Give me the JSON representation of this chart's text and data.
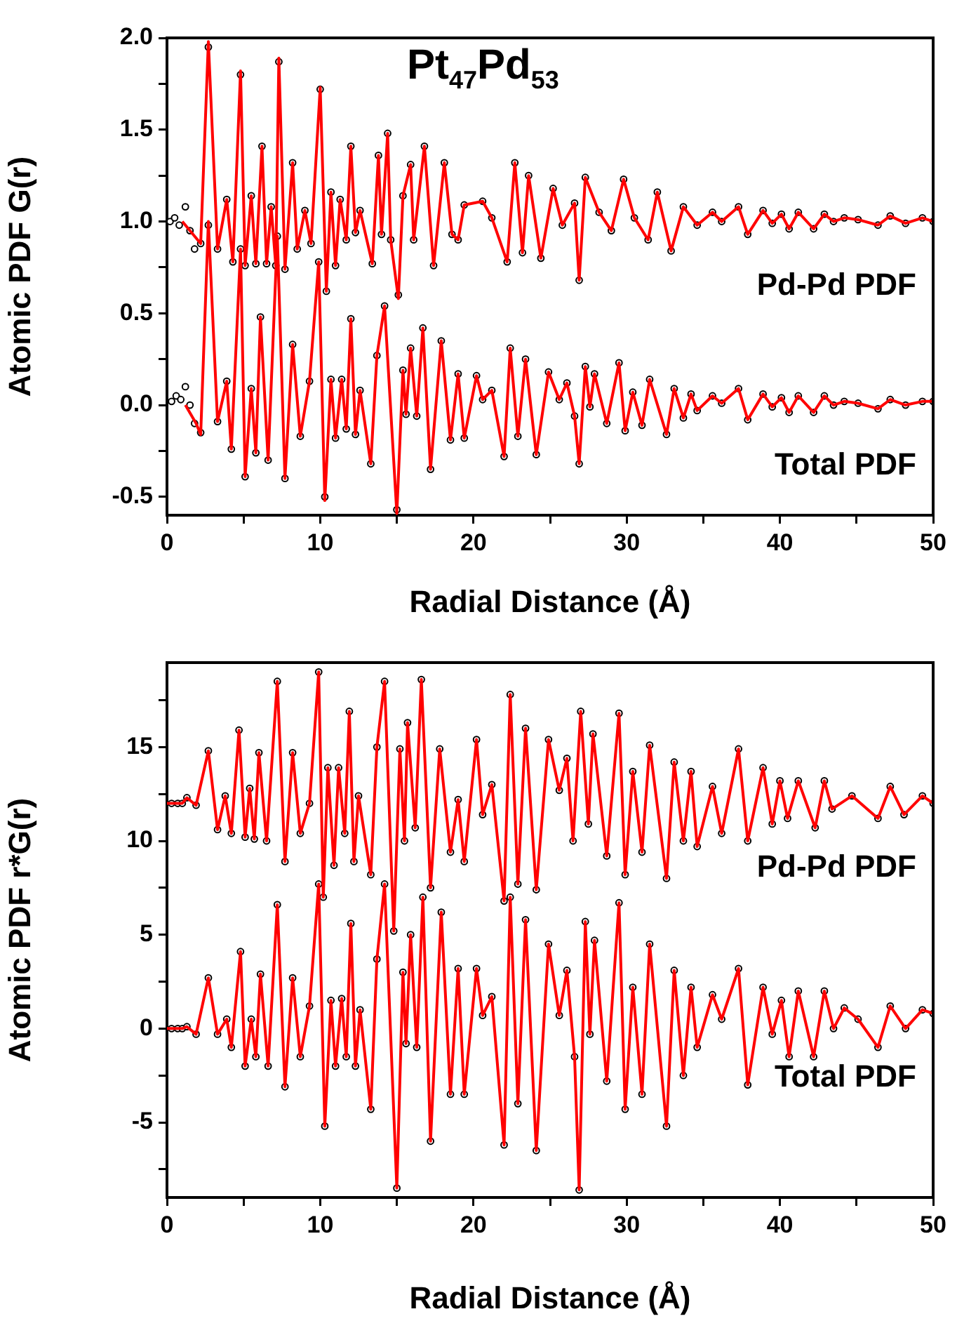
{
  "chart_data": [
    {
      "type": "line",
      "title": "Pt$_{47}$Pd$_{53}$",
      "xlabel": "Radial Distance (Å)",
      "ylabel": "Atomic PDF G(r)",
      "xlim": [
        0,
        50
      ],
      "ylim": [
        -0.6,
        2.0
      ],
      "xticks": [
        0,
        {
          "value": 5,
          "label": null
        },
        10,
        {
          "value": 15,
          "label": null
        },
        20,
        {
          "value": 25,
          "label": null
        },
        30,
        {
          "value": 35,
          "label": null
        },
        40,
        {
          "value": 45,
          "label": null
        },
        50
      ],
      "yticks": [
        -0.5,
        {
          "value": -0.25,
          "label": null
        },
        {
          "value": 0,
          "label": "0.0"
        },
        {
          "value": 0.25,
          "label": null
        },
        0.5,
        {
          "value": 0.75,
          "label": null
        },
        {
          "value": 1,
          "label": "1.0"
        },
        {
          "value": 1.25,
          "label": null
        },
        1.5,
        {
          "value": 1.75,
          "label": null
        },
        {
          "value": 2,
          "label": "2.0"
        }
      ],
      "series": [
        {
          "type": "scatter",
          "marker": "circle",
          "color": "#000000",
          "x": [
            0.2,
            0.5,
            0.8,
            1.2,
            1.5,
            1.8,
            2.2,
            2.7,
            3.3,
            3.9,
            4.3,
            4.8,
            5.1,
            5.5,
            5.8,
            6.2,
            6.5,
            6.8,
            7.1,
            7.3,
            7.7,
            8.2,
            8.5,
            9.0,
            9.4,
            10.0,
            10.4,
            10.7,
            11.0,
            11.3,
            11.7,
            12.0,
            12.3,
            12.6,
            13.4,
            13.8,
            14.0,
            14.4,
            14.6,
            15.1,
            15.4,
            15.9,
            16.1,
            16.8,
            17.4,
            18.1,
            18.6,
            19.0,
            19.4,
            20.6,
            21.2,
            22.2,
            22.7,
            23.2,
            23.6,
            24.4,
            25.2,
            25.8,
            26.6,
            26.9,
            27.3,
            28.2,
            29.0,
            29.8,
            30.5,
            31.4,
            32.0,
            32.9,
            33.7,
            34.6,
            35.6,
            36.2,
            37.3,
            37.9,
            38.9,
            39.5,
            40.1,
            40.6,
            41.2,
            42.2,
            42.9,
            43.5,
            44.2,
            45.1,
            46.4,
            47.2,
            48.2,
            49.3,
            50.0
          ],
          "values": [
            1.0,
            1.02,
            0.98,
            1.08,
            0.95,
            0.85,
            0.88,
            1.95,
            0.85,
            1.12,
            0.78,
            1.8,
            0.76,
            1.14,
            0.77,
            1.41,
            0.77,
            1.08,
            0.76,
            1.87,
            0.74,
            1.32,
            0.85,
            1.06,
            0.88,
            1.72,
            0.62,
            1.16,
            0.76,
            1.12,
            0.9,
            1.41,
            0.94,
            1.06,
            0.77,
            1.36,
            0.93,
            1.48,
            0.9,
            0.6,
            1.14,
            1.31,
            0.9,
            1.41,
            0.76,
            1.32,
            0.93,
            0.9,
            1.09,
            1.11,
            1.02,
            0.78,
            1.32,
            0.83,
            1.25,
            0.8,
            1.18,
            0.98,
            1.1,
            0.68,
            1.24,
            1.05,
            0.95,
            1.23,
            1.02,
            0.9,
            1.16,
            0.84,
            1.08,
            0.98,
            1.05,
            1.0,
            1.08,
            0.93,
            1.06,
            0.99,
            1.04,
            0.96,
            1.05,
            0.96,
            1.04,
            1.0,
            1.02,
            1.01,
            0.98,
            1.03,
            0.99,
            1.02,
            1.0
          ]
        },
        {
          "type": "scatter",
          "marker": "circle",
          "color": "#000000",
          "x": [
            0.3,
            0.6,
            0.9,
            1.2,
            1.5,
            1.8,
            2.2,
            2.7,
            3.3,
            3.9,
            4.2,
            4.8,
            5.1,
            5.5,
            5.8,
            6.1,
            6.6,
            7.2,
            7.7,
            8.2,
            8.7,
            9.3,
            9.9,
            10.3,
            10.7,
            11.0,
            11.4,
            11.7,
            12.0,
            12.3,
            12.6,
            13.3,
            13.7,
            14.2,
            15.0,
            15.4,
            15.6,
            15.9,
            16.3,
            16.7,
            17.2,
            17.9,
            18.5,
            19.0,
            19.4,
            20.2,
            20.6,
            21.2,
            22.0,
            22.4,
            22.9,
            23.4,
            24.1,
            24.9,
            25.6,
            26.1,
            26.6,
            26.9,
            27.3,
            27.6,
            27.9,
            28.7,
            29.5,
            29.9,
            30.4,
            31.0,
            31.5,
            32.6,
            33.1,
            33.7,
            34.2,
            34.6,
            35.6,
            36.2,
            37.3,
            37.9,
            38.9,
            39.5,
            40.1,
            40.6,
            41.2,
            42.2,
            42.9,
            43.5,
            44.2,
            45.1,
            46.4,
            47.2,
            48.2,
            49.3,
            50.0
          ],
          "values": [
            0.02,
            0.05,
            0.03,
            0.1,
            0.0,
            -0.1,
            -0.15,
            0.98,
            -0.09,
            0.13,
            -0.24,
            0.85,
            -0.39,
            0.09,
            -0.26,
            0.48,
            -0.3,
            0.92,
            -0.4,
            0.33,
            -0.17,
            0.13,
            0.78,
            -0.5,
            0.14,
            -0.18,
            0.14,
            -0.13,
            0.47,
            -0.16,
            0.08,
            -0.32,
            0.27,
            0.54,
            -0.57,
            0.19,
            -0.05,
            0.31,
            -0.06,
            0.42,
            -0.35,
            0.35,
            -0.19,
            0.17,
            -0.18,
            0.16,
            0.03,
            0.08,
            -0.28,
            0.31,
            -0.17,
            0.25,
            -0.27,
            0.18,
            0.03,
            0.12,
            -0.06,
            -0.32,
            0.21,
            -0.01,
            0.17,
            -0.1,
            0.23,
            -0.14,
            0.07,
            -0.11,
            0.14,
            -0.16,
            0.09,
            -0.07,
            0.06,
            -0.03,
            0.05,
            0.01,
            0.09,
            -0.08,
            0.06,
            -0.01,
            0.04,
            -0.04,
            0.05,
            -0.04,
            0.05,
            0.0,
            0.02,
            0.01,
            -0.02,
            0.03,
            0.0,
            0.02,
            0.02
          ]
        },
        {
          "type": "line",
          "name": "Pd-Pd PDF",
          "color": "#ff0000",
          "x": [
            1.0,
            2.2,
            2.7,
            3.3,
            3.9,
            4.3,
            4.8,
            5.1,
            5.5,
            5.8,
            6.2,
            6.5,
            6.8,
            7.1,
            7.3,
            7.7,
            8.2,
            8.5,
            9.0,
            9.4,
            10.0,
            10.4,
            10.7,
            11.0,
            11.3,
            11.7,
            12.0,
            12.3,
            12.6,
            13.4,
            13.8,
            14.0,
            14.4,
            14.6,
            15.1,
            15.4,
            15.9,
            16.1,
            16.8,
            17.4,
            18.1,
            18.6,
            19.0,
            19.4,
            20.6,
            21.2,
            22.2,
            22.7,
            23.2,
            23.6,
            24.4,
            25.2,
            25.8,
            26.6,
            26.9,
            27.3,
            28.2,
            29.0,
            29.8,
            30.5,
            31.4,
            32.0,
            32.9,
            33.7,
            34.6,
            35.6,
            36.2,
            37.3,
            37.9,
            38.9,
            39.5,
            40.1,
            40.6,
            41.2,
            42.2,
            42.9,
            43.5,
            44.2,
            45.1,
            46.4,
            47.2,
            48.2,
            49.3,
            50.0
          ],
          "values": [
            1.0,
            0.88,
            1.98,
            0.85,
            1.12,
            0.78,
            1.82,
            0.76,
            1.14,
            0.77,
            1.41,
            0.77,
            1.08,
            0.76,
            1.89,
            0.74,
            1.32,
            0.85,
            1.06,
            0.88,
            1.73,
            0.62,
            1.16,
            0.76,
            1.12,
            0.9,
            1.41,
            0.94,
            1.06,
            0.77,
            1.36,
            0.93,
            1.48,
            0.9,
            0.58,
            1.14,
            1.31,
            0.9,
            1.41,
            0.76,
            1.32,
            0.93,
            0.9,
            1.09,
            1.11,
            1.02,
            0.78,
            1.32,
            0.83,
            1.25,
            0.8,
            1.18,
            0.98,
            1.1,
            0.68,
            1.24,
            1.05,
            0.95,
            1.23,
            1.02,
            0.9,
            1.16,
            0.84,
            1.08,
            0.98,
            1.05,
            1.0,
            1.08,
            0.93,
            1.06,
            0.99,
            1.04,
            0.96,
            1.05,
            0.96,
            1.04,
            1.0,
            1.02,
            1.01,
            0.98,
            1.03,
            0.99,
            1.02,
            1.0
          ]
        },
        {
          "type": "line",
          "name": "Total PDF",
          "color": "#ff0000",
          "x": [
            1.2,
            1.9,
            2.2,
            2.7,
            3.3,
            3.9,
            4.2,
            4.8,
            5.1,
            5.5,
            5.8,
            6.1,
            6.6,
            7.2,
            7.7,
            8.2,
            8.7,
            9.3,
            9.9,
            10.3,
            10.7,
            11.0,
            11.4,
            11.7,
            12.0,
            12.3,
            12.6,
            13.3,
            13.7,
            14.2,
            15.0,
            15.4,
            15.6,
            15.9,
            16.3,
            16.7,
            17.2,
            17.9,
            18.5,
            19.0,
            19.4,
            20.2,
            20.6,
            21.2,
            22.0,
            22.4,
            22.9,
            23.4,
            24.1,
            24.9,
            25.6,
            26.1,
            26.6,
            26.9,
            27.3,
            27.6,
            27.9,
            28.7,
            29.5,
            29.9,
            30.4,
            31.0,
            31.5,
            32.6,
            33.1,
            33.7,
            34.2,
            34.6,
            35.6,
            36.2,
            37.3,
            37.9,
            38.9,
            39.5,
            40.1,
            40.6,
            41.2,
            42.2,
            42.9,
            43.5,
            44.2,
            45.1,
            46.4,
            47.2,
            48.2,
            49.3,
            50.0
          ],
          "values": [
            0.0,
            -0.1,
            -0.16,
            1.0,
            -0.09,
            0.13,
            -0.24,
            0.85,
            -0.39,
            0.09,
            -0.26,
            0.48,
            -0.3,
            0.92,
            -0.4,
            0.33,
            -0.17,
            0.13,
            0.78,
            -0.52,
            0.14,
            -0.18,
            0.14,
            -0.13,
            0.47,
            -0.16,
            0.08,
            -0.32,
            0.27,
            0.54,
            -0.59,
            0.19,
            -0.05,
            0.31,
            -0.06,
            0.42,
            -0.35,
            0.35,
            -0.19,
            0.17,
            -0.18,
            0.16,
            0.03,
            0.08,
            -0.28,
            0.31,
            -0.17,
            0.25,
            -0.27,
            0.18,
            0.03,
            0.12,
            -0.06,
            -0.32,
            0.21,
            -0.01,
            0.17,
            -0.1,
            0.23,
            -0.14,
            0.07,
            -0.11,
            0.14,
            -0.16,
            0.09,
            -0.07,
            0.06,
            -0.03,
            0.05,
            0.01,
            0.09,
            -0.08,
            0.06,
            -0.01,
            0.04,
            -0.04,
            0.05,
            -0.04,
            0.05,
            0.0,
            0.02,
            0.01,
            -0.02,
            0.03,
            0.0,
            0.02,
            0.02
          ]
        }
      ]
    },
    {
      "type": "line",
      "xlabel": "Radial Distance (Å)",
      "ylabel": "Atomic PDF r*G(r)",
      "xlim": [
        0,
        50
      ],
      "ylim": [
        -9,
        19.5
      ],
      "xticks": [
        0,
        {
          "value": 5,
          "label": null
        },
        10,
        {
          "value": 15,
          "label": null
        },
        20,
        {
          "value": 25,
          "label": null
        },
        30,
        {
          "value": 35,
          "label": null
        },
        40,
        {
          "value": 45,
          "label": null
        },
        50
      ],
      "yticks": [
        {
          "value": -7.5,
          "label": null
        },
        -5,
        {
          "value": -2.5,
          "label": null
        },
        0,
        {
          "value": 2.5,
          "label": null
        },
        5,
        {
          "value": 7.5,
          "label": null
        },
        10,
        {
          "value": 12.5,
          "label": null
        },
        15,
        {
          "value": 17.5,
          "label": null
        }
      ],
      "series": [
        {
          "type": "scatter",
          "marker": "circle",
          "color": "#000000",
          "x": [
            0.3,
            0.7,
            1.0,
            1.3,
            1.9,
            2.7,
            3.3,
            3.8,
            4.2,
            4.7,
            5.1,
            5.4,
            5.7,
            6.0,
            6.5,
            7.2,
            7.7,
            8.2,
            8.7,
            9.3,
            9.9,
            10.2,
            10.5,
            10.9,
            11.2,
            11.6,
            11.9,
            12.2,
            12.5,
            13.3,
            13.7,
            14.2,
            14.8,
            15.2,
            15.5,
            15.7,
            16.2,
            16.6,
            17.2,
            17.8,
            18.5,
            19.0,
            19.4,
            20.2,
            20.6,
            21.2,
            22.0,
            22.4,
            22.9,
            23.4,
            24.1,
            24.9,
            25.6,
            26.1,
            26.5,
            27.0,
            27.5,
            27.8,
            28.7,
            29.5,
            29.9,
            30.4,
            31.0,
            31.5,
            32.6,
            33.1,
            33.7,
            34.2,
            34.6,
            35.6,
            36.2,
            37.3,
            37.9,
            38.9,
            39.5,
            40.0,
            40.5,
            41.2,
            42.3,
            42.9,
            43.4,
            44.7,
            46.4,
            47.2,
            48.1,
            49.3,
            50.0
          ],
          "values": [
            12.0,
            12.0,
            12.0,
            12.3,
            11.9,
            14.8,
            10.6,
            12.4,
            10.4,
            15.9,
            10.2,
            12.8,
            10.1,
            14.7,
            10.0,
            18.5,
            8.9,
            14.7,
            10.4,
            12.0,
            19.0,
            7.0,
            13.9,
            8.7,
            13.9,
            10.4,
            16.9,
            8.9,
            12.4,
            8.2,
            15.0,
            18.5,
            5.2,
            14.9,
            10.0,
            16.3,
            10.7,
            18.6,
            7.5,
            14.9,
            9.4,
            12.2,
            8.9,
            15.4,
            11.4,
            13.0,
            6.8,
            17.8,
            7.7,
            16.0,
            7.4,
            15.4,
            12.7,
            14.4,
            10.0,
            16.9,
            10.9,
            15.7,
            9.2,
            16.8,
            8.2,
            13.7,
            9.4,
            15.1,
            8.0,
            14.2,
            10.0,
            13.7,
            9.7,
            12.9,
            10.4,
            14.9,
            10.0,
            13.9,
            10.9,
            13.2,
            11.2,
            13.2,
            10.7,
            13.2,
            11.7,
            12.4,
            11.2,
            12.9,
            11.4,
            12.4,
            12.0
          ]
        },
        {
          "type": "scatter",
          "marker": "circle",
          "color": "#000000",
          "x": [
            0.3,
            0.7,
            1.0,
            1.3,
            1.9,
            2.7,
            3.3,
            3.9,
            4.2,
            4.8,
            5.1,
            5.5,
            5.8,
            6.1,
            6.6,
            7.2,
            7.7,
            8.2,
            8.7,
            9.3,
            9.9,
            10.3,
            10.7,
            11.0,
            11.4,
            11.7,
            12.0,
            12.3,
            12.6,
            13.3,
            13.7,
            14.2,
            15.0,
            15.4,
            15.6,
            15.9,
            16.3,
            16.7,
            17.2,
            17.9,
            18.5,
            19.0,
            19.4,
            20.2,
            20.6,
            21.2,
            22.0,
            22.4,
            22.9,
            23.4,
            24.1,
            24.9,
            25.6,
            26.1,
            26.6,
            26.9,
            27.3,
            27.6,
            27.9,
            28.7,
            29.5,
            29.9,
            30.4,
            31.0,
            31.5,
            32.6,
            33.1,
            33.7,
            34.2,
            34.6,
            35.6,
            36.2,
            37.3,
            37.9,
            38.9,
            39.5,
            40.1,
            40.6,
            41.2,
            42.2,
            42.9,
            43.5,
            44.2,
            45.1,
            46.4,
            47.2,
            48.2,
            49.3,
            50.0
          ],
          "values": [
            0.0,
            0.0,
            0.0,
            0.1,
            -0.3,
            2.7,
            -0.3,
            0.5,
            -1.0,
            4.1,
            -2.0,
            0.5,
            -1.5,
            2.9,
            -2.0,
            6.6,
            -3.1,
            2.7,
            -1.5,
            1.2,
            7.7,
            -5.2,
            1.5,
            -2.0,
            1.6,
            -1.5,
            5.6,
            -2.0,
            1.0,
            -4.3,
            3.7,
            7.7,
            -8.5,
            3.0,
            -0.8,
            5.0,
            -1.0,
            7.0,
            -6.0,
            6.2,
            -3.5,
            3.2,
            -3.5,
            3.2,
            0.7,
            1.7,
            -6.2,
            7.0,
            -4.0,
            5.8,
            -6.5,
            4.5,
            0.7,
            3.1,
            -1.5,
            -8.6,
            5.7,
            -0.3,
            4.7,
            -2.8,
            6.7,
            -4.3,
            2.2,
            -3.5,
            4.5,
            -5.2,
            3.1,
            -2.5,
            2.2,
            -1.0,
            1.8,
            0.5,
            3.2,
            -3.0,
            2.2,
            -0.3,
            1.5,
            -1.5,
            2.0,
            -1.5,
            2.0,
            0.0,
            1.1,
            0.5,
            -1.0,
            1.2,
            0.0,
            1.0,
            0.8
          ]
        },
        {
          "type": "line",
          "name": "Pd-Pd PDF",
          "color": "#ff0000",
          "x": [
            0.0,
            1.0,
            1.3,
            1.9,
            2.7,
            3.3,
            3.8,
            4.2,
            4.7,
            5.1,
            5.4,
            5.7,
            6.0,
            6.5,
            7.2,
            7.7,
            8.2,
            8.7,
            9.3,
            9.9,
            10.2,
            10.5,
            10.9,
            11.2,
            11.6,
            11.9,
            12.2,
            12.5,
            13.3,
            13.7,
            14.2,
            14.8,
            15.2,
            15.5,
            15.7,
            16.2,
            16.6,
            17.2,
            17.8,
            18.5,
            19.0,
            19.4,
            20.2,
            20.6,
            21.2,
            22.0,
            22.4,
            22.9,
            23.4,
            24.1,
            24.9,
            25.6,
            26.1,
            26.5,
            27.0,
            27.5,
            27.8,
            28.7,
            29.5,
            29.9,
            30.4,
            31.0,
            31.5,
            32.6,
            33.1,
            33.7,
            34.2,
            34.6,
            35.6,
            36.2,
            37.3,
            37.9,
            38.9,
            39.5,
            40.0,
            40.5,
            41.2,
            42.3,
            42.9,
            43.4,
            44.7,
            46.4,
            47.2,
            48.1,
            49.3,
            50.0
          ],
          "values": [
            12.0,
            12.0,
            12.3,
            11.9,
            14.8,
            10.6,
            12.4,
            10.4,
            15.9,
            10.2,
            12.8,
            10.1,
            14.7,
            10.0,
            18.5,
            8.9,
            14.7,
            10.4,
            12.0,
            19.0,
            7.0,
            13.9,
            8.7,
            13.9,
            10.4,
            16.9,
            8.9,
            12.4,
            8.2,
            15.0,
            18.5,
            5.2,
            14.9,
            10.0,
            16.3,
            10.7,
            18.6,
            7.5,
            14.9,
            9.4,
            12.2,
            8.9,
            15.4,
            11.4,
            13.0,
            6.8,
            17.8,
            7.7,
            16.0,
            7.4,
            15.4,
            12.7,
            14.4,
            10.0,
            16.9,
            10.9,
            15.7,
            9.2,
            16.8,
            8.2,
            13.7,
            9.4,
            15.1,
            8.0,
            14.2,
            10.0,
            13.7,
            9.7,
            12.9,
            10.4,
            14.9,
            10.0,
            13.9,
            10.9,
            13.2,
            11.2,
            13.2,
            10.7,
            13.2,
            11.7,
            12.4,
            11.2,
            12.9,
            11.4,
            12.4,
            12.0
          ]
        },
        {
          "type": "line",
          "name": "Total PDF",
          "color": "#ff0000",
          "x": [
            0.0,
            1.0,
            1.3,
            1.9,
            2.7,
            3.3,
            3.9,
            4.2,
            4.8,
            5.1,
            5.5,
            5.8,
            6.1,
            6.6,
            7.2,
            7.7,
            8.2,
            8.7,
            9.3,
            9.9,
            10.3,
            10.7,
            11.0,
            11.4,
            11.7,
            12.0,
            12.3,
            12.6,
            13.3,
            13.7,
            14.2,
            15.0,
            15.4,
            15.6,
            15.9,
            16.3,
            16.7,
            17.2,
            17.9,
            18.5,
            19.0,
            19.4,
            20.2,
            20.6,
            21.2,
            22.0,
            22.4,
            22.9,
            23.4,
            24.1,
            24.9,
            25.6,
            26.1,
            26.6,
            26.9,
            27.3,
            27.6,
            27.9,
            28.7,
            29.5,
            29.9,
            30.4,
            31.0,
            31.5,
            32.6,
            33.1,
            33.7,
            34.2,
            34.6,
            35.6,
            36.2,
            37.3,
            37.9,
            38.9,
            39.5,
            40.1,
            40.6,
            41.2,
            42.2,
            42.9,
            43.5,
            44.2,
            45.1,
            46.4,
            47.2,
            48.2,
            49.3,
            50.0
          ],
          "values": [
            0.0,
            0.0,
            0.1,
            -0.3,
            2.7,
            -0.3,
            0.5,
            -1.0,
            4.1,
            -2.0,
            0.5,
            -1.5,
            2.9,
            -2.0,
            6.6,
            -3.1,
            2.7,
            -1.5,
            1.2,
            7.7,
            -5.2,
            1.5,
            -2.0,
            1.6,
            -1.5,
            5.6,
            -2.0,
            1.0,
            -4.3,
            3.7,
            7.7,
            -8.5,
            3.0,
            -0.8,
            5.0,
            -1.0,
            7.0,
            -6.0,
            6.2,
            -3.5,
            3.2,
            -3.5,
            3.2,
            0.7,
            1.7,
            -6.2,
            7.0,
            -4.0,
            5.8,
            -6.5,
            4.5,
            0.7,
            3.1,
            -1.5,
            -8.6,
            5.7,
            -0.3,
            4.7,
            -2.8,
            6.7,
            -4.3,
            2.2,
            -3.5,
            4.5,
            -5.2,
            3.1,
            -2.5,
            2.2,
            -1.0,
            1.8,
            0.5,
            3.2,
            -3.0,
            2.2,
            -0.3,
            1.5,
            -1.5,
            2.0,
            -1.5,
            2.0,
            0.0,
            1.1,
            0.5,
            -1.0,
            1.2,
            0.0,
            1.0,
            0.8
          ]
        }
      ]
    }
  ]
}
